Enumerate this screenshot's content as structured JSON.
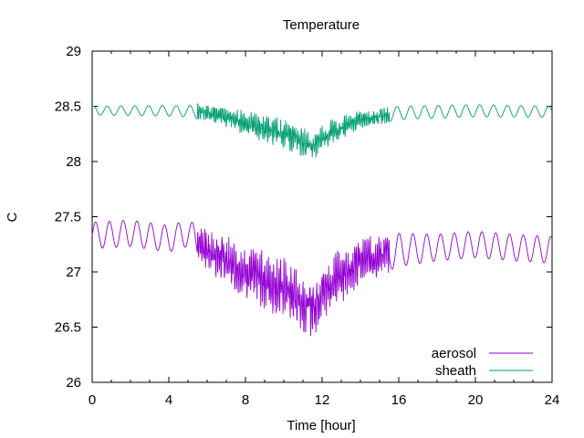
{
  "chart_data": {
    "type": "line",
    "title": "Temperature",
    "xlabel": "Time [hour]",
    "ylabel": "C",
    "xlim": [
      0,
      24
    ],
    "ylim": [
      26,
      29
    ],
    "x_ticks": [
      0,
      4,
      8,
      12,
      16,
      20,
      24
    ],
    "x_tick_labels": [
      "0",
      "4",
      "8",
      "12",
      "16",
      "20",
      "24"
    ],
    "y_ticks": [
      26,
      26.5,
      27,
      27.5,
      28,
      28.5,
      29
    ],
    "y_tick_labels": [
      "26",
      "26.5",
      "27",
      "27.5",
      "28",
      "28.5",
      "29"
    ],
    "grid": false,
    "legend_position": "bottom-right",
    "series": [
      {
        "name": "aerosol",
        "color": "#9400d3",
        "baseline": [
          [
            0,
            27.33
          ],
          [
            2,
            27.35
          ],
          [
            4,
            27.3
          ],
          [
            5,
            27.35
          ],
          [
            6,
            27.2
          ],
          [
            8,
            27.0
          ],
          [
            10,
            26.85
          ],
          [
            11,
            26.72
          ],
          [
            11.5,
            26.68
          ],
          [
            12,
            26.82
          ],
          [
            13,
            26.98
          ],
          [
            14,
            27.1
          ],
          [
            16,
            27.2
          ],
          [
            18,
            27.22
          ],
          [
            20,
            27.25
          ],
          [
            22,
            27.22
          ],
          [
            24,
            27.2
          ]
        ],
        "amplitude": [
          [
            0,
            0.12
          ],
          [
            5,
            0.12
          ],
          [
            6,
            0.18
          ],
          [
            8,
            0.22
          ],
          [
            10,
            0.25
          ],
          [
            12,
            0.26
          ],
          [
            14,
            0.2
          ],
          [
            16,
            0.15
          ],
          [
            18,
            0.12
          ],
          [
            24,
            0.12
          ]
        ],
        "min_value": 26.29,
        "max_value": 27.54
      },
      {
        "name": "sheath",
        "color": "#009e73",
        "baseline": [
          [
            0,
            28.46
          ],
          [
            4,
            28.46
          ],
          [
            6,
            28.45
          ],
          [
            8,
            28.35
          ],
          [
            10,
            28.25
          ],
          [
            11,
            28.18
          ],
          [
            11.5,
            28.12
          ],
          [
            12,
            28.22
          ],
          [
            14,
            28.38
          ],
          [
            16,
            28.44
          ],
          [
            20,
            28.46
          ],
          [
            24,
            28.45
          ]
        ],
        "amplitude": [
          [
            0,
            0.04
          ],
          [
            5,
            0.05
          ],
          [
            6,
            0.08
          ],
          [
            8,
            0.1
          ],
          [
            10,
            0.12
          ],
          [
            12,
            0.12
          ],
          [
            14,
            0.08
          ],
          [
            16,
            0.06
          ],
          [
            24,
            0.05
          ]
        ],
        "min_value": 27.94,
        "max_value": 28.58
      }
    ]
  }
}
